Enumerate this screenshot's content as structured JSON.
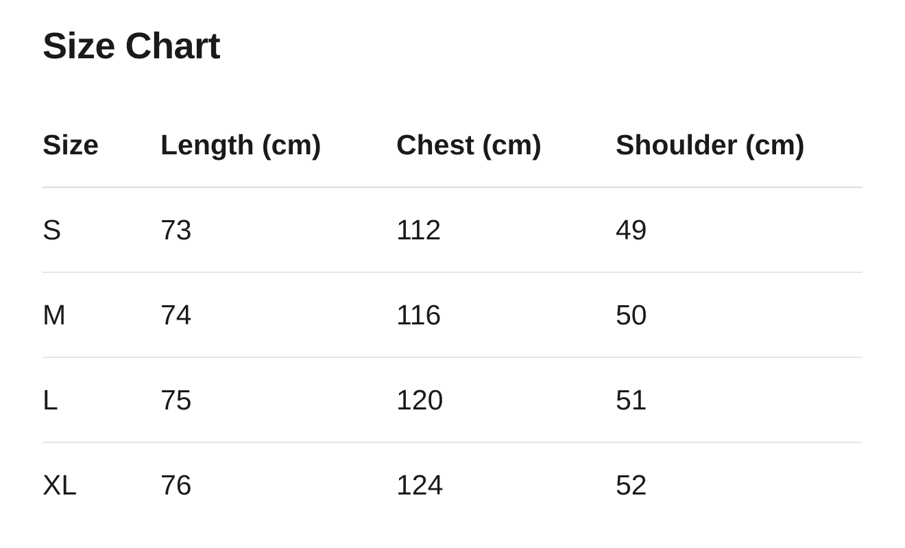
{
  "title": "Size Chart",
  "headers": [
    "Size",
    "Length (cm)",
    "Chest (cm)",
    "Shoulder (cm)"
  ],
  "rows": [
    [
      "S",
      "73",
      "112",
      "49"
    ],
    [
      "M",
      "74",
      "116",
      "50"
    ],
    [
      "L",
      "75",
      "120",
      "51"
    ],
    [
      "XL",
      "76",
      "124",
      "52"
    ]
  ]
}
